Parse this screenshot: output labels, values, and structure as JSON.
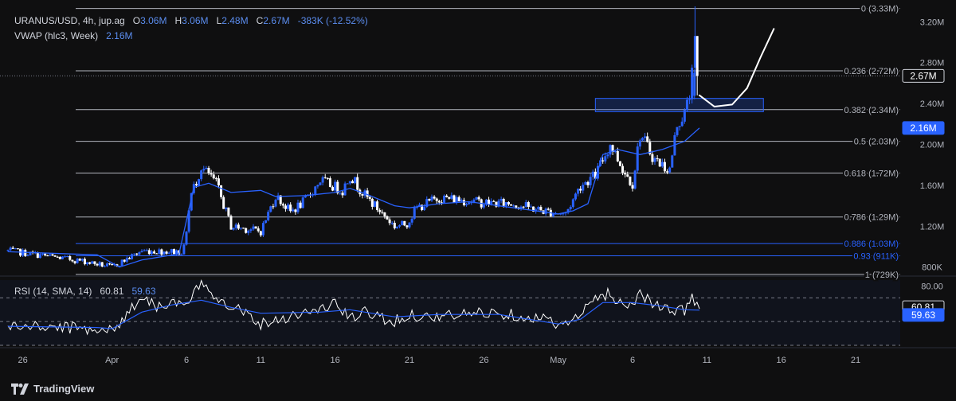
{
  "header": {
    "symbol": "URANUS/USD, 4h, jup.ag",
    "o_label": "O",
    "o_value": "3.06M",
    "h_label": "H",
    "h_value": "3.06M",
    "l_label": "L",
    "l_value": "2.48M",
    "c_label": "C",
    "c_value": "2.67M",
    "change": "-383K (-12.52%)",
    "indicator_name": "VWAP (hlc3, Week)",
    "indicator_value": "2.16M",
    "rsi_name": "RSI (14, SMA, 14)",
    "rsi_value": "60.81",
    "rsi_sma_value": "59.63"
  },
  "footer": {
    "brand": "TradingView"
  },
  "colors": {
    "up": "#2962ff",
    "down": "#ffffff",
    "background": "#0f0f10",
    "vwap": "#2962ff",
    "rsi": "#ffffff",
    "rsi_sma": "#2962ff"
  },
  "chart_data": {
    "type": "candlestick",
    "title": "URANUS/USD, 4h, jup.ag",
    "price_scale": {
      "ticks": [
        "3.20M",
        "2.80M",
        "2.40M",
        "2.00M",
        "1.60M",
        "1.20M",
        "800K"
      ],
      "tick_values": [
        3.2,
        2.8,
        2.4,
        2.0,
        1.6,
        1.2,
        0.8
      ],
      "ylim": [
        0.72,
        3.35
      ]
    },
    "price_badges": [
      {
        "label": "2.67M",
        "value": 2.67,
        "style": "last"
      },
      {
        "label": "2.16M",
        "value": 2.16,
        "style": "vwap"
      }
    ],
    "time_scale": {
      "ticks": [
        "26",
        "Apr",
        "6",
        "11",
        "16",
        "21",
        "26",
        "May",
        "6",
        "11",
        "16",
        "21"
      ],
      "tick_x_days": [
        -6,
        0,
        5,
        10,
        15,
        20,
        25,
        30,
        35,
        40,
        45,
        50
      ],
      "xlim_days": [
        -7,
        53
      ]
    },
    "fibonacci": [
      {
        "ratio": "0",
        "label": "0 (3.33M)",
        "value": 3.33,
        "color": "#b2b5be"
      },
      {
        "ratio": "0.236",
        "label": "0.236 (2.72M)",
        "value": 2.72,
        "color": "#b2b5be"
      },
      {
        "ratio": "0.382",
        "label": "0.382 (2.34M)",
        "value": 2.34,
        "color": "#b2b5be"
      },
      {
        "ratio": "0.5",
        "label": "0.5 (2.03M)",
        "value": 2.03,
        "color": "#b2b5be"
      },
      {
        "ratio": "0.618",
        "label": "0.618 (1.72M)",
        "value": 1.72,
        "color": "#b2b5be"
      },
      {
        "ratio": "0.786",
        "label": "0.786 (1.29M)",
        "value": 1.29,
        "color": "#b2b5be"
      },
      {
        "ratio": "0.886",
        "label": "0.886 (1.03M)",
        "value": 1.03,
        "color": "#2962ff"
      },
      {
        "ratio": "0.93",
        "label": "0.93 (911K)",
        "value": 0.911,
        "color": "#2962ff"
      },
      {
        "ratio": "1",
        "label": "1 (729K)",
        "value": 0.729,
        "color": "#b2b5be"
      }
    ],
    "annotation_box": {
      "x_days": [
        32.5,
        43.8
      ],
      "y": [
        2.32,
        2.45
      ]
    },
    "annotation_arrow": {
      "x_days": [
        39.5,
        40.5,
        41.7,
        42.7,
        43.6,
        44.5
      ],
      "y": [
        2.48,
        2.37,
        2.39,
        2.55,
        2.85,
        3.13
      ]
    },
    "candles_anchor_days": [
      -7,
      -2,
      0,
      2,
      4.8,
      5.3,
      6,
      7,
      8,
      10,
      11,
      12,
      13,
      14,
      15.5,
      16,
      17,
      19,
      19.8,
      20.5,
      22,
      24,
      25,
      27,
      29,
      30.5,
      31.5,
      32.5,
      33.5,
      34.5,
      35,
      35.5,
      36.5,
      37.5,
      38,
      38.5,
      39,
      39.3
    ],
    "candles_anchor_close": [
      0.96,
      0.86,
      0.8,
      0.96,
      0.95,
      1.5,
      1.78,
      1.62,
      1.2,
      1.15,
      1.5,
      1.34,
      1.45,
      1.65,
      1.55,
      1.7,
      1.5,
      1.2,
      1.22,
      1.38,
      1.48,
      1.45,
      1.43,
      1.42,
      1.35,
      1.32,
      1.6,
      1.7,
      2.0,
      1.72,
      1.62,
      2.1,
      1.85,
      1.75,
      2.2,
      2.3,
      2.55,
      2.67
    ],
    "vwap_days": [
      -7,
      -1,
      0.5,
      2,
      4.5,
      5.5,
      6.5,
      8,
      10,
      11,
      13,
      15,
      16,
      17,
      19,
      20,
      22,
      24,
      26,
      28,
      30,
      31,
      32,
      33,
      34,
      35.5,
      37,
      38.5,
      39.5
    ],
    "vwap_values": [
      0.95,
      0.92,
      0.8,
      0.87,
      0.93,
      1.58,
      1.62,
      1.53,
      1.55,
      1.49,
      1.5,
      1.53,
      1.57,
      1.52,
      1.4,
      1.38,
      1.42,
      1.44,
      1.4,
      1.36,
      1.32,
      1.35,
      1.42,
      1.9,
      1.95,
      1.9,
      1.95,
      2.03,
      2.16
    ],
    "rsi": {
      "levels": [
        "80.00"
      ],
      "level_values": [
        80
      ],
      "ylim": [
        30,
        85
      ],
      "bands": [
        70,
        50,
        30
      ],
      "anchor_days": [
        -7,
        -3,
        -1,
        0,
        1,
        2,
        3,
        4,
        5,
        5.5,
        6.2,
        7,
        8,
        9,
        10,
        12,
        14,
        15,
        16,
        17,
        19,
        20,
        21,
        23,
        25,
        27,
        29,
        30.5,
        31.5,
        32.5,
        33.5,
        34.5,
        35,
        35.5,
        36.5,
        37.5,
        38.5,
        39,
        39.5
      ],
      "anchor_values": [
        46,
        45,
        44,
        42,
        56,
        72,
        63,
        66,
        62,
        74,
        82,
        71,
        64,
        58,
        48,
        55,
        60,
        66,
        52,
        58,
        50,
        56,
        54,
        55,
        58,
        56,
        52,
        47,
        55,
        70,
        74,
        62,
        66,
        75,
        64,
        58,
        60,
        72,
        60.81
      ],
      "sma_anchor_days": [
        -7,
        -1,
        0,
        2,
        4,
        6,
        8,
        10,
        14,
        16,
        19,
        22,
        26,
        30,
        31.5,
        33,
        35,
        37,
        38.5,
        39.5
      ],
      "sma_anchor_values": [
        46,
        45,
        44,
        58,
        64,
        68,
        62,
        57,
        58,
        60,
        54,
        56,
        56,
        48,
        52,
        66,
        66,
        63,
        60,
        59.63
      ]
    }
  }
}
